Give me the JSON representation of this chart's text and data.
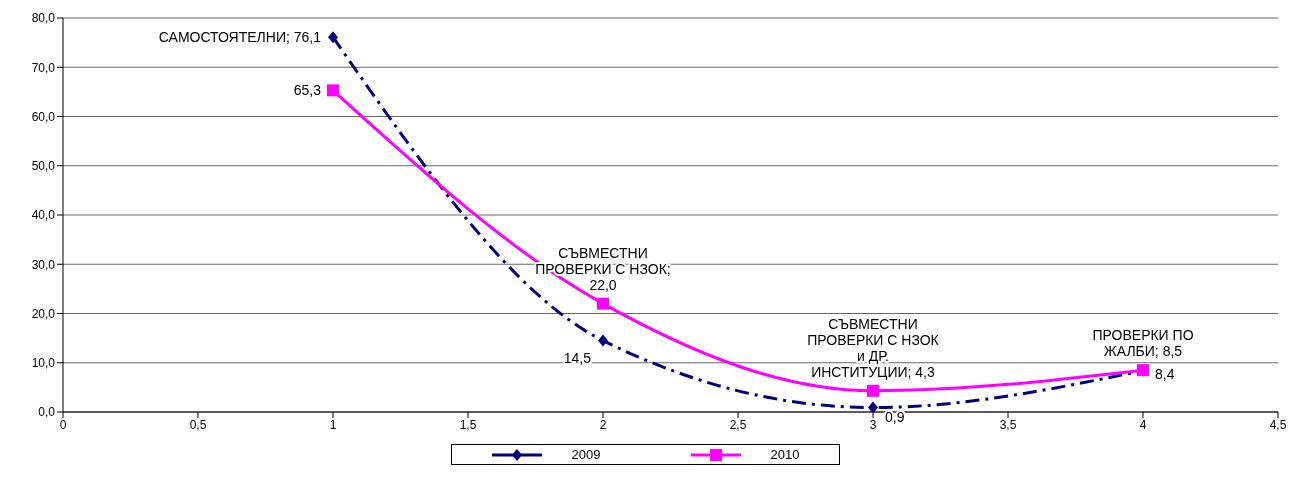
{
  "chart_data": {
    "type": "line",
    "x": [
      1,
      2,
      3,
      4
    ],
    "series": [
      {
        "name": "2009",
        "color": "#000080",
        "values": [
          76.1,
          14.5,
          0.9,
          8.4
        ],
        "marker": "diamond",
        "line_style": "dashed",
        "value_labels": [
          "САМОСТОЯТЕЛНИ; 76,1",
          "14,5",
          "0,9",
          "8,4"
        ]
      },
      {
        "name": "2010",
        "color": "#ff00ff",
        "values": [
          65.3,
          22.0,
          4.3,
          8.5
        ],
        "marker": "square",
        "line_style": "solid",
        "value_labels": [
          "65,3",
          "СЪВМЕСТНИ ПРОВЕРКИ С НЗОК; 22,0",
          "СЪВМЕСТНИ ПРОВЕРКИ С НЗОК и ДР. ИНСТИТУЦИИ; 4,3",
          "ПРОВЕРКИ ПО ЖАЛБИ; 8,5"
        ]
      }
    ],
    "xlim": [
      0,
      4.5
    ],
    "xticks": [
      {
        "value": 0,
        "label": "0"
      },
      {
        "value": 0.5,
        "label": "0,5"
      },
      {
        "value": 1,
        "label": "1"
      },
      {
        "value": 1.5,
        "label": "1,5"
      },
      {
        "value": 2,
        "label": "2"
      },
      {
        "value": 2.5,
        "label": "2,5"
      },
      {
        "value": 3,
        "label": "3"
      },
      {
        "value": 3.5,
        "label": "3,5"
      },
      {
        "value": 4,
        "label": "4"
      },
      {
        "value": 4.5,
        "label": "4,5"
      }
    ],
    "ylim": [
      0,
      80
    ],
    "yticks": [
      {
        "value": 0,
        "label": "0,0"
      },
      {
        "value": 10,
        "label": "10,0"
      },
      {
        "value": 20,
        "label": "20,0"
      },
      {
        "value": 30,
        "label": "30,0"
      },
      {
        "value": 40,
        "label": "40,0"
      },
      {
        "value": 50,
        "label": "50,0"
      },
      {
        "value": 60,
        "label": "60,0"
      },
      {
        "value": 70,
        "label": "70,0"
      },
      {
        "value": 80,
        "label": "80,0"
      }
    ],
    "grid": "y",
    "legend": "bottom"
  }
}
